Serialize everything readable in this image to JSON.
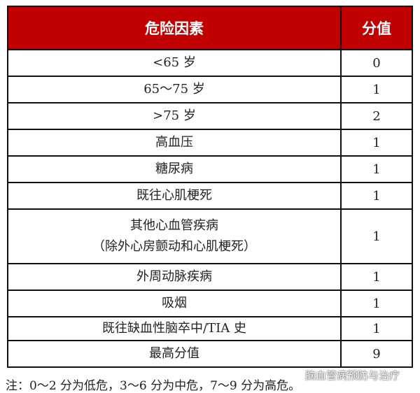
{
  "table": {
    "headers": [
      "危险因素",
      "分值"
    ],
    "rows": [
      {
        "factor": "<65 岁",
        "score": "0"
      },
      {
        "factor": "65～75 岁",
        "score": "1"
      },
      {
        "factor": ">75 岁",
        "score": "2"
      },
      {
        "factor": "高血压",
        "score": "1"
      },
      {
        "factor": "糖尿病",
        "score": "1"
      },
      {
        "factor": "既往心肌梗死",
        "score": "1"
      },
      {
        "factor": "其他心血管疾病\n（除外心房颤动和心肌梗死）",
        "score": "1"
      },
      {
        "factor": "外周动脉疾病",
        "score": "1"
      },
      {
        "factor": "吸烟",
        "score": "1"
      },
      {
        "factor": "既往缺血性脑卒中/TIA 史",
        "score": "1"
      },
      {
        "factor": "最高分值",
        "score": "9"
      }
    ],
    "header_color": "#c00000"
  },
  "note": "注：0～2 分为低危，3～6 分为中危，7～9 分为高危。",
  "watermark": "脑血管病预防与治疗"
}
